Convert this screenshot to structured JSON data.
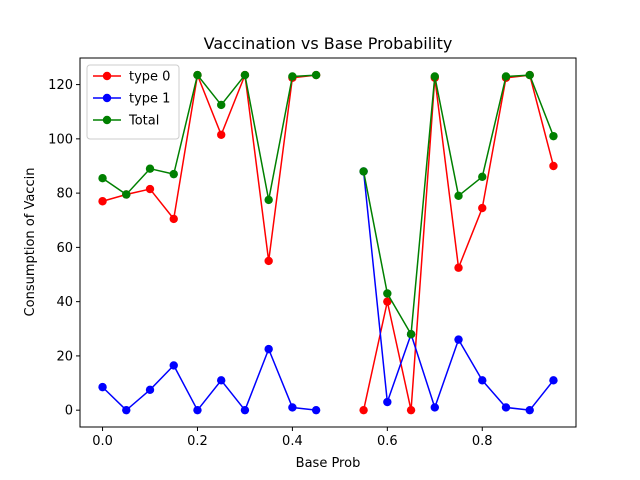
{
  "chart_data": {
    "type": "line",
    "title": "Vaccination vs Base Probability",
    "xlabel": "Base Prob",
    "ylabel": "Consumption of Vaccin",
    "xlim": [
      -0.0475,
      0.9975
    ],
    "ylim": [
      -6.2,
      129.8
    ],
    "xticks": [
      0.0,
      0.2,
      0.4,
      0.6,
      0.8
    ],
    "xtick_labels": [
      "0.0",
      "0.2",
      "0.4",
      "0.6",
      "0.8"
    ],
    "yticks": [
      0,
      20,
      40,
      60,
      80,
      100,
      120
    ],
    "ytick_labels": [
      "0",
      "20",
      "40",
      "60",
      "80",
      "100",
      "120"
    ],
    "grid": false,
    "legend_position": "top-left",
    "x": [
      0.0,
      0.05,
      0.1,
      0.15,
      0.2,
      0.25,
      0.3,
      0.35,
      0.4,
      0.45,
      0.5,
      0.55,
      0.6,
      0.65,
      0.7,
      0.75,
      0.8,
      0.85,
      0.9,
      0.95
    ],
    "series": [
      {
        "name": "type 0",
        "color": "#ff0000",
        "values": [
          77,
          79.5,
          81.5,
          70.5,
          123.5,
          101.5,
          123.5,
          55,
          122.5,
          123.5,
          null,
          0,
          40,
          0,
          122.5,
          52.5,
          74.5,
          122.5,
          123.5,
          90
        ]
      },
      {
        "name": "type 1",
        "color": "#0000ff",
        "values": [
          8.5,
          0,
          7.5,
          16.5,
          0,
          11,
          0,
          22.5,
          1,
          0,
          null,
          88,
          3,
          28,
          1,
          26,
          11,
          1,
          0,
          11
        ]
      },
      {
        "name": "Total",
        "color": "#008000",
        "values": [
          85.5,
          79.5,
          89,
          87,
          123.5,
          112.5,
          123.5,
          77.5,
          123,
          123.5,
          null,
          88,
          43,
          28,
          123,
          79,
          86,
          123,
          123.5,
          101
        ]
      }
    ]
  }
}
